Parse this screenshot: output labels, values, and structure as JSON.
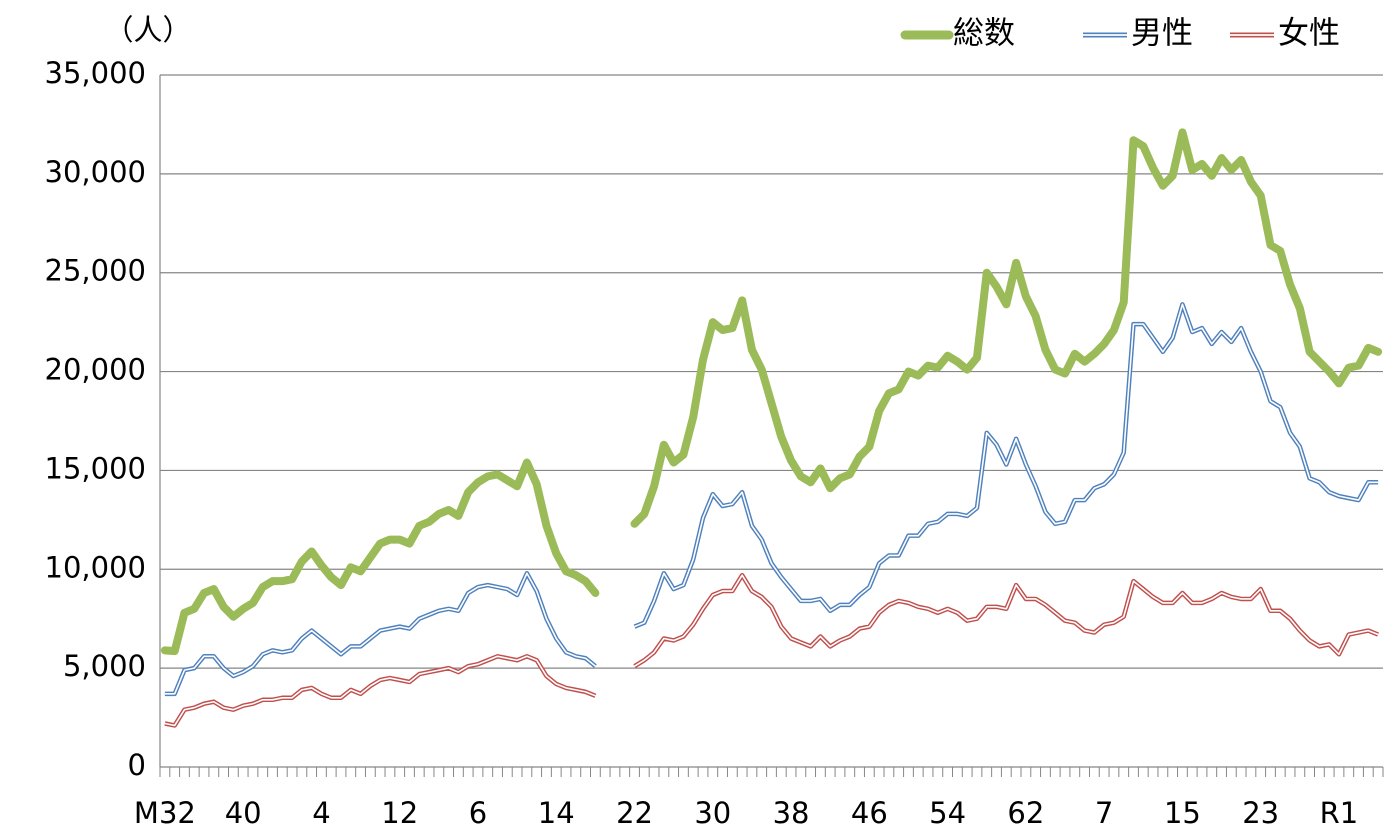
{
  "chart_data": {
    "type": "line",
    "ylabel": "（人）",
    "legend": "top-right",
    "grid": true,
    "ylim": [
      0,
      35000
    ],
    "yticks": [
      0,
      {
        "value": 5000,
        "label": "5,000"
      },
      {
        "value": 10000,
        "label": "10,000"
      },
      {
        "value": 15000,
        "label": "15,000"
      },
      {
        "value": 20000,
        "label": "20,000"
      },
      {
        "value": 25000,
        "label": "25,000"
      },
      {
        "value": 30000,
        "label": "30,000"
      },
      {
        "value": 35000,
        "label": "35,000"
      }
    ],
    "categories": [
      "M32",
      null,
      null,
      null,
      null,
      null,
      null,
      null,
      "40",
      null,
      null,
      null,
      null,
      null,
      null,
      null,
      "4",
      null,
      null,
      null,
      null,
      null,
      null,
      null,
      "12",
      null,
      null,
      null,
      null,
      null,
      null,
      null,
      "6",
      null,
      null,
      null,
      null,
      null,
      null,
      null,
      "14",
      null,
      null,
      null,
      null,
      null,
      null,
      null,
      "22",
      null,
      null,
      null,
      null,
      null,
      null,
      null,
      "30",
      null,
      null,
      null,
      null,
      null,
      null,
      null,
      "38",
      null,
      null,
      null,
      null,
      null,
      null,
      null,
      "46",
      null,
      null,
      null,
      null,
      null,
      null,
      null,
      "54",
      null,
      null,
      null,
      null,
      null,
      null,
      null,
      "62",
      null,
      null,
      null,
      null,
      null,
      null,
      null,
      "7",
      null,
      null,
      null,
      null,
      null,
      null,
      null,
      "15",
      null,
      null,
      null,
      null,
      null,
      null,
      null,
      "23",
      null,
      null,
      null,
      null,
      null,
      null,
      null,
      "R1",
      null,
      null,
      null,
      null
    ],
    "series": [
      {
        "name": "総数",
        "color": "#9bbb59",
        "style": "thick",
        "values": [
          5900,
          5860,
          7800,
          8000,
          8800,
          9000,
          8100,
          7600,
          8000,
          8300,
          9100,
          9400,
          9400,
          9500,
          10400,
          10900,
          10200,
          9600,
          9200,
          10100,
          9900,
          10600,
          11300,
          11500,
          11500,
          11300,
          12200,
          12400,
          12800,
          13000,
          12700,
          13900,
          14400,
          14700,
          14800,
          14500,
          14200,
          15400,
          14300,
          12200,
          10800,
          9900,
          9700,
          9400,
          8800,
          null,
          null,
          null,
          12300,
          12800,
          14200,
          16300,
          15400,
          15800,
          17700,
          20600,
          22500,
          22100,
          22200,
          23600,
          21100,
          20100,
          18400,
          16700,
          15500,
          14700,
          14400,
          15100,
          14100,
          14600,
          14800,
          15700,
          16200,
          18000,
          18900,
          19100,
          20000,
          19800,
          20300,
          20200,
          20800,
          20500,
          20100,
          20700,
          25000,
          24300,
          23400,
          25500,
          23800,
          22800,
          21100,
          20100,
          19900,
          20900,
          20500,
          20900,
          21400,
          22100,
          23500,
          31700,
          31400,
          30300,
          29400,
          29900,
          32100,
          30200,
          30500,
          29900,
          30800,
          30200,
          30700,
          29600,
          28900,
          26400,
          26100,
          24400,
          23200,
          21000,
          20500,
          20000,
          19400,
          20200,
          20300,
          21200,
          21000
        ]
      },
      {
        "name": "男性",
        "color": "#4f81bd",
        "style": "double",
        "values": [
          3700,
          3700,
          4900,
          5000,
          5600,
          5600,
          5000,
          4600,
          4800,
          5100,
          5700,
          5900,
          5800,
          5900,
          6500,
          6900,
          6500,
          6100,
          5700,
          6100,
          6100,
          6500,
          6900,
          7000,
          7100,
          7000,
          7500,
          7700,
          7900,
          8000,
          7900,
          8800,
          9100,
          9200,
          9100,
          9000,
          8700,
          9800,
          8900,
          7500,
          6500,
          5800,
          5600,
          5500,
          5100,
          null,
          null,
          null,
          7100,
          7300,
          8400,
          9800,
          9000,
          9200,
          10500,
          12600,
          13800,
          13200,
          13300,
          13900,
          12200,
          11500,
          10300,
          9600,
          9000,
          8400,
          8400,
          8500,
          7900,
          8200,
          8200,
          8700,
          9100,
          10300,
          10700,
          10700,
          11700,
          11700,
          12300,
          12400,
          12800,
          12800,
          12700,
          13100,
          16900,
          16300,
          15300,
          16600,
          15300,
          14200,
          12900,
          12300,
          12400,
          13500,
          13500,
          14100,
          14300,
          14800,
          15900,
          22400,
          22400,
          21700,
          21000,
          21700,
          23400,
          22000,
          22200,
          21400,
          22000,
          21500,
          22200,
          21000,
          20000,
          18500,
          18200,
          16900,
          16200,
          14600,
          14400,
          13900,
          13700,
          13600,
          13500,
          14400,
          14400
        ]
      },
      {
        "name": "女性",
        "color": "#c0504d",
        "style": "double",
        "values": [
          2200,
          2100,
          2900,
          3000,
          3200,
          3300,
          3000,
          2900,
          3100,
          3200,
          3400,
          3400,
          3500,
          3500,
          3900,
          4000,
          3700,
          3500,
          3500,
          3900,
          3700,
          4100,
          4400,
          4500,
          4400,
          4300,
          4700,
          4800,
          4900,
          5000,
          4800,
          5100,
          5200,
          5400,
          5600,
          5500,
          5400,
          5600,
          5400,
          4600,
          4200,
          4000,
          3900,
          3800,
          3600,
          null,
          null,
          null,
          5100,
          5400,
          5800,
          6500,
          6400,
          6600,
          7200,
          8000,
          8700,
          8900,
          8900,
          9700,
          8900,
          8600,
          8100,
          7100,
          6500,
          6300,
          6100,
          6600,
          6100,
          6400,
          6600,
          7000,
          7100,
          7800,
          8200,
          8400,
          8300,
          8100,
          8000,
          7800,
          8000,
          7800,
          7400,
          7500,
          8100,
          8100,
          8000,
          9200,
          8500,
          8500,
          8200,
          7800,
          7400,
          7300,
          6900,
          6800,
          7200,
          7300,
          7600,
          9400,
          9000,
          8600,
          8300,
          8300,
          8800,
          8300,
          8300,
          8500,
          8800,
          8600,
          8500,
          8500,
          9000,
          7900,
          7900,
          7500,
          6900,
          6400,
          6100,
          6200,
          5700,
          6700,
          6800,
          6900,
          6700
        ]
      }
    ]
  }
}
